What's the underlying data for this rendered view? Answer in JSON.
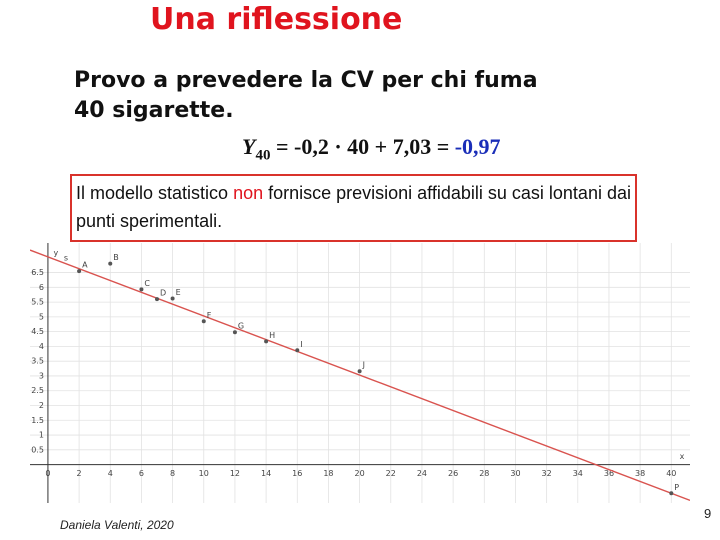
{
  "slide": {
    "title": "Una riflessione",
    "prompt": [
      "Provo a prevedere la CV per chi fuma",
      "40 sigarette."
    ],
    "formula": {
      "var": "Y",
      "sub": "40",
      "body": " = -0,2 · 40 + 7,03 = ",
      "result": "-0,97"
    },
    "note": {
      "before": "Il modello statistico ",
      "emph": "non",
      "after": " fornisce previsioni affidabili su casi lontani dai punti sperimentali."
    },
    "author": "Daniela Valenti, 2020",
    "page": "9"
  },
  "chart_data": {
    "type": "scatter",
    "x_label": "x",
    "y_label": "y",
    "names": [
      "A",
      "B",
      "C",
      "D",
      "E",
      "F",
      "G",
      "H",
      "I",
      "J",
      "P"
    ],
    "x": [
      2,
      4,
      6,
      7,
      8,
      10,
      12,
      14,
      16,
      20,
      40
    ],
    "values": [
      6.55,
      6.8,
      5.93,
      5.6,
      5.62,
      4.85,
      4.48,
      4.17,
      3.87,
      3.16,
      -0.97
    ],
    "fit": {
      "name": "s",
      "slope": -0.2,
      "intercept": 7.03,
      "color": "#d9534f"
    },
    "color": "#555555",
    "xlim": [
      -1.15,
      41.2
    ],
    "ylim": [
      -1.3,
      7.5
    ],
    "xticks": [
      0,
      2,
      4,
      6,
      8,
      10,
      12,
      14,
      16,
      18,
      20,
      22,
      24,
      26,
      28,
      30,
      32,
      34,
      36,
      38,
      40
    ],
    "yticks": [
      0.5,
      1,
      1.5,
      2,
      2.5,
      3,
      3.5,
      4,
      4.5,
      5,
      5.5,
      6,
      6.5
    ],
    "grid": true
  }
}
